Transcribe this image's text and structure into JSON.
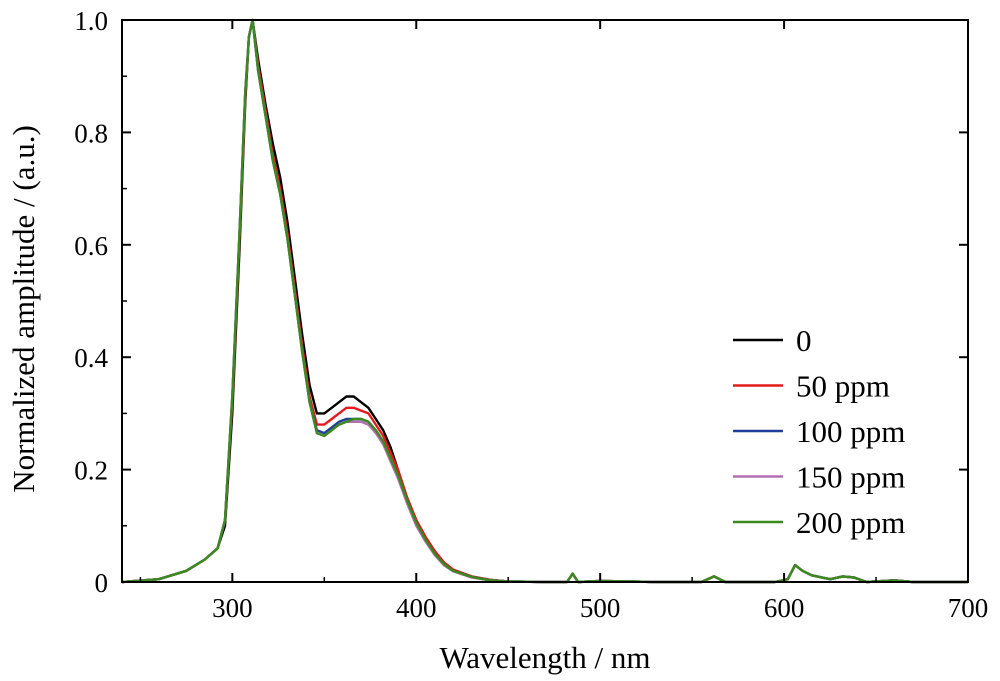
{
  "chart_data": {
    "type": "line",
    "xlabel": "Wavelength / nm",
    "ylabel": "Normalized amplitude / (a.u.)",
    "xlim": [
      240,
      700
    ],
    "ylim": [
      0,
      1.0
    ],
    "x_ticks": [
      300,
      400,
      500,
      600,
      700
    ],
    "x_tick_labels": [
      "300",
      "400",
      "500",
      "600",
      "700"
    ],
    "y_ticks": [
      0,
      0.2,
      0.4,
      0.6,
      0.8,
      1.0
    ],
    "y_tick_labels": [
      "0",
      "0.2",
      "0.4",
      "0.6",
      "0.8",
      "1.0"
    ],
    "grid": false,
    "legend_position": "right",
    "series": [
      {
        "name": "0",
        "color": "#000000",
        "points": [
          [
            240,
            0.0
          ],
          [
            260,
            0.005
          ],
          [
            275,
            0.02
          ],
          [
            285,
            0.04
          ],
          [
            292,
            0.06
          ],
          [
            296,
            0.1
          ],
          [
            300,
            0.3
          ],
          [
            304,
            0.6
          ],
          [
            307,
            0.85
          ],
          [
            309,
            0.97
          ],
          [
            311,
            1.0
          ],
          [
            314,
            0.93
          ],
          [
            318,
            0.85
          ],
          [
            322,
            0.78
          ],
          [
            326,
            0.72
          ],
          [
            330,
            0.64
          ],
          [
            334,
            0.54
          ],
          [
            338,
            0.44
          ],
          [
            342,
            0.35
          ],
          [
            346,
            0.3
          ],
          [
            350,
            0.3
          ],
          [
            354,
            0.31
          ],
          [
            358,
            0.32
          ],
          [
            362,
            0.33
          ],
          [
            366,
            0.33
          ],
          [
            370,
            0.32
          ],
          [
            374,
            0.31
          ],
          [
            378,
            0.29
          ],
          [
            382,
            0.27
          ],
          [
            386,
            0.24
          ],
          [
            390,
            0.2
          ],
          [
            395,
            0.15
          ],
          [
            400,
            0.11
          ],
          [
            405,
            0.08
          ],
          [
            410,
            0.055
          ],
          [
            415,
            0.035
          ],
          [
            420,
            0.022
          ],
          [
            430,
            0.01
          ],
          [
            440,
            0.004
          ],
          [
            450,
            0.001
          ],
          [
            470,
            0.0
          ],
          [
            482,
            0.0
          ],
          [
            485,
            0.015
          ],
          [
            488,
            0.0
          ],
          [
            500,
            0.002
          ],
          [
            530,
            0.0
          ],
          [
            555,
            0.0
          ],
          [
            562,
            0.01
          ],
          [
            568,
            0.0
          ],
          [
            595,
            0.0
          ],
          [
            602,
            0.005
          ],
          [
            606,
            0.03
          ],
          [
            610,
            0.02
          ],
          [
            615,
            0.012
          ],
          [
            625,
            0.005
          ],
          [
            632,
            0.01
          ],
          [
            638,
            0.008
          ],
          [
            645,
            0.0
          ],
          [
            660,
            0.003
          ],
          [
            670,
            0.0
          ],
          [
            700,
            0.0
          ]
        ]
      },
      {
        "name": "50 ppm",
        "color": "#e41a1c",
        "points": [
          [
            240,
            0.0
          ],
          [
            260,
            0.005
          ],
          [
            275,
            0.02
          ],
          [
            285,
            0.04
          ],
          [
            292,
            0.06
          ],
          [
            296,
            0.11
          ],
          [
            300,
            0.32
          ],
          [
            304,
            0.62
          ],
          [
            307,
            0.86
          ],
          [
            309,
            0.97
          ],
          [
            311,
            1.0
          ],
          [
            314,
            0.92
          ],
          [
            318,
            0.84
          ],
          [
            322,
            0.76
          ],
          [
            326,
            0.7
          ],
          [
            330,
            0.62
          ],
          [
            334,
            0.52
          ],
          [
            338,
            0.42
          ],
          [
            342,
            0.33
          ],
          [
            346,
            0.28
          ],
          [
            350,
            0.28
          ],
          [
            354,
            0.29
          ],
          [
            358,
            0.3
          ],
          [
            362,
            0.31
          ],
          [
            366,
            0.31
          ],
          [
            370,
            0.305
          ],
          [
            374,
            0.3
          ],
          [
            378,
            0.28
          ],
          [
            382,
            0.26
          ],
          [
            386,
            0.23
          ],
          [
            390,
            0.2
          ],
          [
            395,
            0.15
          ],
          [
            400,
            0.11
          ],
          [
            405,
            0.08
          ],
          [
            410,
            0.055
          ],
          [
            415,
            0.035
          ],
          [
            420,
            0.022
          ],
          [
            430,
            0.01
          ],
          [
            440,
            0.004
          ],
          [
            450,
            0.001
          ],
          [
            470,
            0.0
          ],
          [
            482,
            0.0
          ],
          [
            485,
            0.015
          ],
          [
            488,
            0.0
          ],
          [
            500,
            0.002
          ],
          [
            530,
            0.0
          ],
          [
            555,
            0.0
          ],
          [
            562,
            0.01
          ],
          [
            568,
            0.0
          ],
          [
            595,
            0.0
          ],
          [
            602,
            0.005
          ],
          [
            606,
            0.03
          ],
          [
            610,
            0.02
          ],
          [
            615,
            0.012
          ],
          [
            625,
            0.005
          ],
          [
            632,
            0.01
          ],
          [
            638,
            0.008
          ],
          [
            645,
            0.0
          ],
          [
            660,
            0.003
          ],
          [
            670,
            0.0
          ],
          [
            700,
            0.0
          ]
        ]
      },
      {
        "name": "100 ppm",
        "color": "#1f3f99",
        "points": [
          [
            240,
            0.0
          ],
          [
            260,
            0.005
          ],
          [
            275,
            0.02
          ],
          [
            285,
            0.04
          ],
          [
            292,
            0.06
          ],
          [
            296,
            0.11
          ],
          [
            300,
            0.33
          ],
          [
            304,
            0.63
          ],
          [
            307,
            0.87
          ],
          [
            309,
            0.97
          ],
          [
            311,
            1.0
          ],
          [
            314,
            0.91
          ],
          [
            318,
            0.83
          ],
          [
            322,
            0.75
          ],
          [
            326,
            0.69
          ],
          [
            330,
            0.61
          ],
          [
            334,
            0.51
          ],
          [
            338,
            0.41
          ],
          [
            342,
            0.32
          ],
          [
            346,
            0.27
          ],
          [
            350,
            0.265
          ],
          [
            354,
            0.275
          ],
          [
            358,
            0.285
          ],
          [
            362,
            0.29
          ],
          [
            366,
            0.29
          ],
          [
            370,
            0.29
          ],
          [
            374,
            0.285
          ],
          [
            378,
            0.27
          ],
          [
            382,
            0.25
          ],
          [
            386,
            0.22
          ],
          [
            390,
            0.19
          ],
          [
            395,
            0.145
          ],
          [
            400,
            0.105
          ],
          [
            405,
            0.075
          ],
          [
            410,
            0.05
          ],
          [
            415,
            0.032
          ],
          [
            420,
            0.02
          ],
          [
            430,
            0.009
          ],
          [
            440,
            0.003
          ],
          [
            450,
            0.001
          ],
          [
            470,
            0.0
          ],
          [
            482,
            0.0
          ],
          [
            485,
            0.015
          ],
          [
            488,
            0.0
          ],
          [
            500,
            0.002
          ],
          [
            530,
            0.0
          ],
          [
            555,
            0.0
          ],
          [
            562,
            0.01
          ],
          [
            568,
            0.0
          ],
          [
            595,
            0.0
          ],
          [
            602,
            0.005
          ],
          [
            606,
            0.03
          ],
          [
            610,
            0.02
          ],
          [
            615,
            0.012
          ],
          [
            625,
            0.005
          ],
          [
            632,
            0.01
          ],
          [
            638,
            0.008
          ],
          [
            645,
            0.0
          ],
          [
            660,
            0.003
          ],
          [
            670,
            0.0
          ],
          [
            700,
            0.0
          ]
        ]
      },
      {
        "name": "150 ppm",
        "color": "#b36fb3",
        "points": [
          [
            240,
            0.0
          ],
          [
            260,
            0.005
          ],
          [
            275,
            0.02
          ],
          [
            285,
            0.04
          ],
          [
            292,
            0.06
          ],
          [
            296,
            0.11
          ],
          [
            300,
            0.33
          ],
          [
            304,
            0.63
          ],
          [
            307,
            0.87
          ],
          [
            309,
            0.97
          ],
          [
            311,
            1.0
          ],
          [
            314,
            0.91
          ],
          [
            318,
            0.83
          ],
          [
            322,
            0.75
          ],
          [
            326,
            0.69
          ],
          [
            330,
            0.61
          ],
          [
            334,
            0.51
          ],
          [
            338,
            0.41
          ],
          [
            342,
            0.32
          ],
          [
            346,
            0.265
          ],
          [
            350,
            0.26
          ],
          [
            354,
            0.27
          ],
          [
            358,
            0.28
          ],
          [
            362,
            0.285
          ],
          [
            366,
            0.285
          ],
          [
            370,
            0.285
          ],
          [
            374,
            0.28
          ],
          [
            378,
            0.265
          ],
          [
            382,
            0.245
          ],
          [
            386,
            0.215
          ],
          [
            390,
            0.185
          ],
          [
            395,
            0.14
          ],
          [
            400,
            0.1
          ],
          [
            405,
            0.072
          ],
          [
            410,
            0.048
          ],
          [
            415,
            0.03
          ],
          [
            420,
            0.019
          ],
          [
            430,
            0.008
          ],
          [
            440,
            0.003
          ],
          [
            450,
            0.001
          ],
          [
            470,
            0.0
          ],
          [
            482,
            0.0
          ],
          [
            485,
            0.015
          ],
          [
            488,
            0.0
          ],
          [
            500,
            0.002
          ],
          [
            530,
            0.0
          ],
          [
            555,
            0.0
          ],
          [
            562,
            0.01
          ],
          [
            568,
            0.0
          ],
          [
            595,
            0.0
          ],
          [
            602,
            0.005
          ],
          [
            606,
            0.03
          ],
          [
            610,
            0.02
          ],
          [
            615,
            0.012
          ],
          [
            625,
            0.005
          ],
          [
            632,
            0.01
          ],
          [
            638,
            0.008
          ],
          [
            645,
            0.0
          ],
          [
            660,
            0.003
          ],
          [
            670,
            0.0
          ],
          [
            700,
            0.0
          ]
        ]
      },
      {
        "name": "200 ppm",
        "color": "#3a8a1e",
        "points": [
          [
            240,
            0.0
          ],
          [
            260,
            0.005
          ],
          [
            275,
            0.02
          ],
          [
            285,
            0.04
          ],
          [
            292,
            0.06
          ],
          [
            296,
            0.11
          ],
          [
            300,
            0.33
          ],
          [
            304,
            0.63
          ],
          [
            307,
            0.87
          ],
          [
            309,
            0.97
          ],
          [
            311,
            1.0
          ],
          [
            314,
            0.91
          ],
          [
            318,
            0.83
          ],
          [
            322,
            0.75
          ],
          [
            326,
            0.69
          ],
          [
            330,
            0.61
          ],
          [
            334,
            0.51
          ],
          [
            338,
            0.41
          ],
          [
            342,
            0.32
          ],
          [
            346,
            0.265
          ],
          [
            350,
            0.26
          ],
          [
            354,
            0.27
          ],
          [
            358,
            0.28
          ],
          [
            362,
            0.285
          ],
          [
            366,
            0.29
          ],
          [
            370,
            0.29
          ],
          [
            374,
            0.285
          ],
          [
            378,
            0.27
          ],
          [
            382,
            0.25
          ],
          [
            386,
            0.22
          ],
          [
            390,
            0.19
          ],
          [
            395,
            0.145
          ],
          [
            400,
            0.105
          ],
          [
            405,
            0.075
          ],
          [
            410,
            0.05
          ],
          [
            415,
            0.032
          ],
          [
            420,
            0.02
          ],
          [
            430,
            0.009
          ],
          [
            440,
            0.003
          ],
          [
            450,
            0.001
          ],
          [
            470,
            0.0
          ],
          [
            482,
            0.0
          ],
          [
            485,
            0.015
          ],
          [
            488,
            0.0
          ],
          [
            500,
            0.002
          ],
          [
            530,
            0.0
          ],
          [
            555,
            0.0
          ],
          [
            562,
            0.01
          ],
          [
            568,
            0.0
          ],
          [
            595,
            0.0
          ],
          [
            602,
            0.005
          ],
          [
            606,
            0.03
          ],
          [
            610,
            0.02
          ],
          [
            615,
            0.012
          ],
          [
            625,
            0.005
          ],
          [
            632,
            0.01
          ],
          [
            638,
            0.008
          ],
          [
            645,
            0.0
          ],
          [
            660,
            0.003
          ],
          [
            670,
            0.0
          ],
          [
            700,
            0.0
          ]
        ]
      }
    ]
  }
}
